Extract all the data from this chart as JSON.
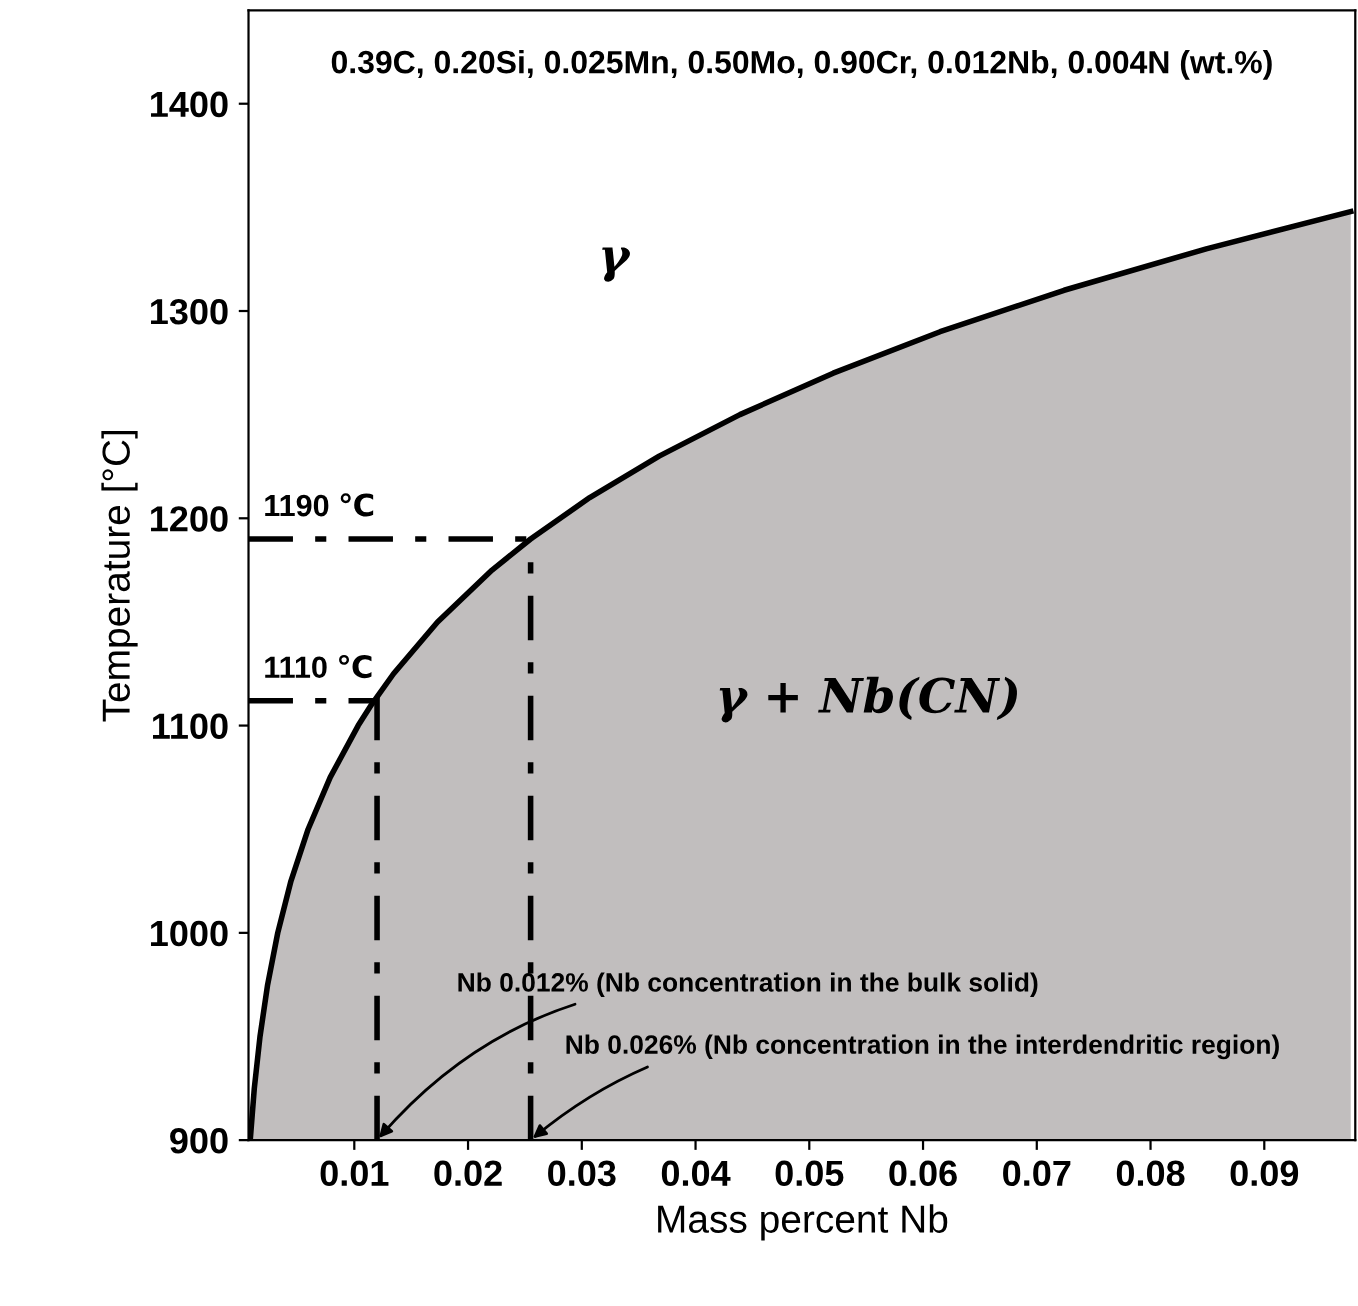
{
  "chart_data": {
    "type": "area",
    "title": "0.39C, 0.20Si, 0.025Mn, 0.50Mo, 0.90Cr, 0.012Nb, 0.004N (wt.%)",
    "xlabel": "Mass percent Nb",
    "ylabel": "Temperature [°C]",
    "x": [
      0.00085,
      0.00121,
      0.00171,
      0.00238,
      0.00327,
      0.00443,
      0.00594,
      0.00788,
      0.01034,
      0.0115,
      0.01345,
      0.01732,
      0.02211,
      0.0255,
      0.0307,
      0.0368,
      0.0439,
      0.0521,
      0.0615,
      0.0724,
      0.0849,
      0.0976
    ],
    "series": [
      {
        "color": "#c1bebe",
        "values": [
          900,
          925,
          950,
          975,
          1000,
          1025,
          1050,
          1075,
          1100,
          1110,
          1125,
          1150,
          1175,
          1190,
          1210,
          1230,
          1250,
          1270,
          1290,
          1310,
          1330,
          1348
        ]
      }
    ],
    "xlim": [
      0.0007,
      0.098
    ],
    "ylim": [
      900,
      1445
    ],
    "xticks": [
      0.01,
      0.02,
      0.03,
      0.04,
      0.05,
      0.06,
      0.07,
      0.08,
      0.09
    ],
    "yticks": [
      900,
      1000,
      1100,
      1200,
      1300,
      1400
    ],
    "grid": false,
    "legend": false,
    "marker": "none",
    "line_style": "solid",
    "ref_lines": [
      {
        "axis": "y",
        "value": 1190,
        "label": "1190 ℃",
        "line_style": "dashdot"
      },
      {
        "axis": "y",
        "value": 1112,
        "label": "1110 ℃",
        "line_style": "dashdot"
      },
      {
        "axis": "x",
        "value": 0.012,
        "label": "Nb 0.012% (Nb concentration in the bulk solid)",
        "line_style": "dashdot"
      },
      {
        "axis": "x",
        "value": 0.0255,
        "label": "Nb 0.026% (Nb concentration in the interdendritic region)",
        "line_style": "dashdot"
      }
    ],
    "annotations": [
      "γ",
      "γ + Nb(CN)"
    ]
  }
}
